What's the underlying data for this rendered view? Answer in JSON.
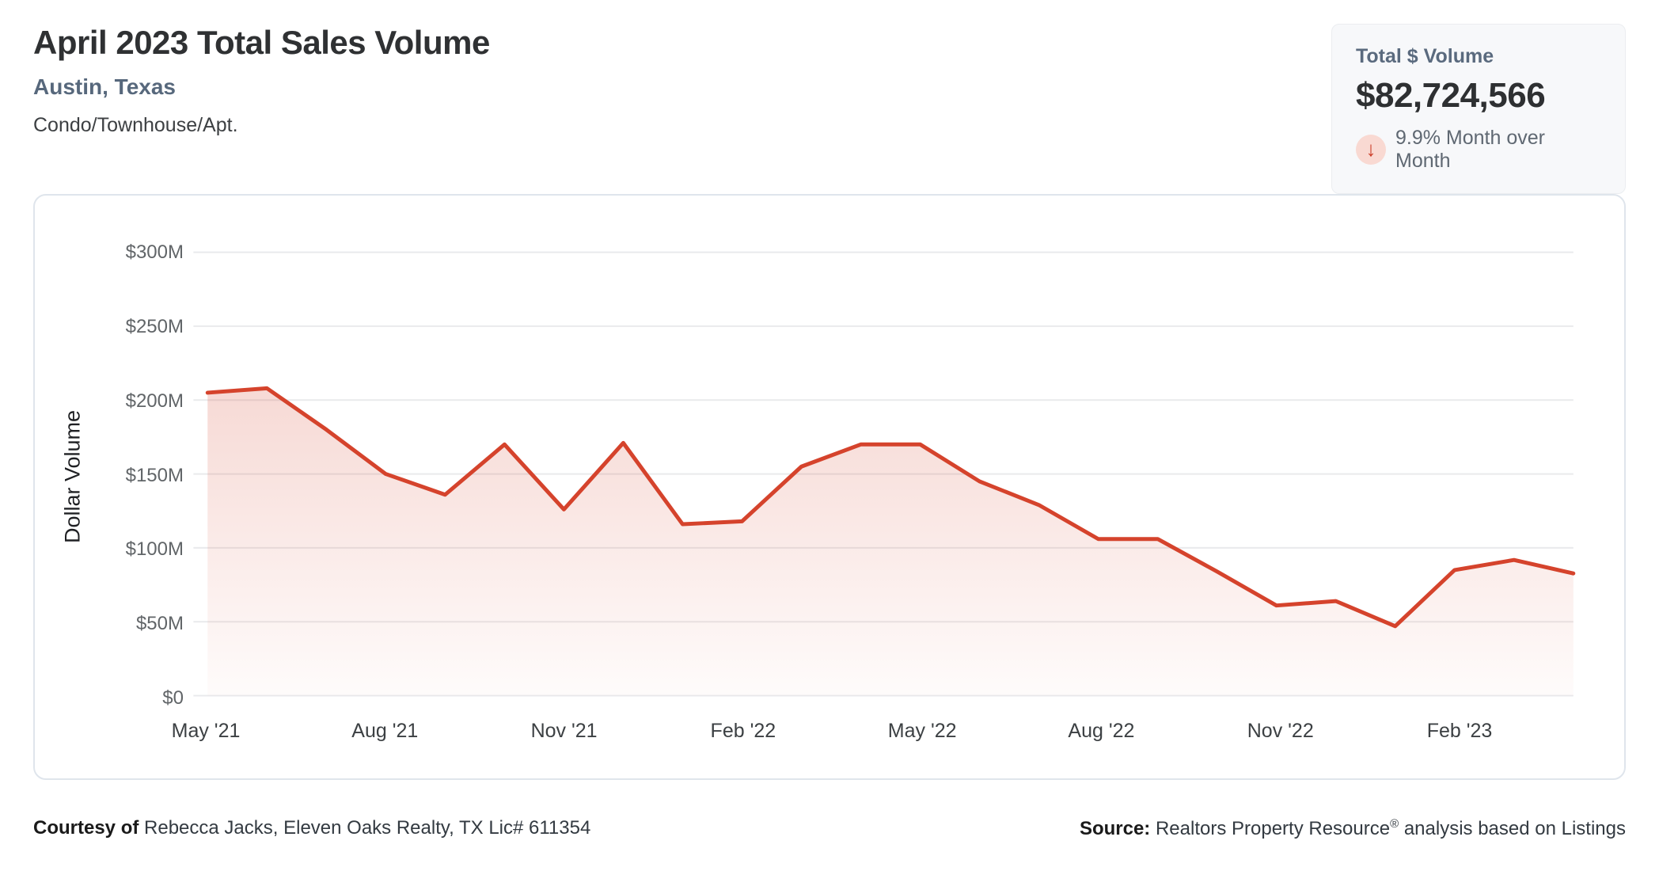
{
  "header": {
    "title": "April 2023 Total Sales Volume",
    "subtitle": "Austin, Texas",
    "property_type": "Condo/Townhouse/Apt."
  },
  "stat_card": {
    "label": "Total $ Volume",
    "value": "$82,724,566",
    "change_direction": "down",
    "change_icon": "arrow-down-icon",
    "change_glyph": "↓",
    "change_text": "9.9% Month over Month"
  },
  "chart_data": {
    "type": "area",
    "title": "April 2023 Total Sales Volume",
    "ylabel": "Dollar Volume",
    "xlabel": "",
    "unit": "USD millions",
    "grid": true,
    "legend": false,
    "ylim": [
      0,
      300
    ],
    "ytick_step": 50,
    "ytick_labels": [
      "$0",
      "$50M",
      "$100M",
      "$150M",
      "$200M",
      "$250M",
      "$300M"
    ],
    "xtick_shown_every": 3,
    "xtick_labels_shown": [
      "May '21",
      "Aug '21",
      "Nov '21",
      "Feb '22",
      "May '22",
      "Aug '22",
      "Nov '22",
      "Feb '23"
    ],
    "x": [
      "May '21",
      "Jun '21",
      "Jul '21",
      "Aug '21",
      "Sep '21",
      "Oct '21",
      "Nov '21",
      "Dec '21",
      "Jan '22",
      "Feb '22",
      "Mar '22",
      "Apr '22",
      "May '22",
      "Jun '22",
      "Jul '22",
      "Aug '22",
      "Sep '22",
      "Oct '22",
      "Nov '22",
      "Dec '22",
      "Jan '23",
      "Feb '23",
      "Mar '23",
      "Apr '23"
    ],
    "series": [
      {
        "name": "Dollar Volume ($M)",
        "values": [
          205,
          208,
          180,
          150,
          136,
          170,
          126,
          171,
          116,
          118,
          155,
          170,
          170,
          145,
          129,
          106,
          106,
          84,
          61,
          64,
          47,
          85,
          91.8,
          82.7
        ]
      }
    ],
    "line_color": "#d5432c",
    "fill_color_top": "rgba(213,67,44,0.20)",
    "fill_color_bottom": "rgba(213,67,44,0.02)",
    "gridline_color": "#e9eaec"
  },
  "footer": {
    "courtesy_label": "Courtesy of",
    "courtesy_text": " Rebecca Jacks, Eleven Oaks Realty, TX Lic# 611354",
    "source_label": "Source:",
    "source_text_pre": " Realtors Property Resource",
    "source_reg": "®",
    "source_text_post": " analysis based on Listings"
  },
  "colors": {
    "accent_red": "#d5432c",
    "slate_heading": "#57687c",
    "stat_card_bg": "#f7f8fa",
    "arrow_badge_bg": "#f9d9d2",
    "card_border": "#dfe5ec"
  }
}
